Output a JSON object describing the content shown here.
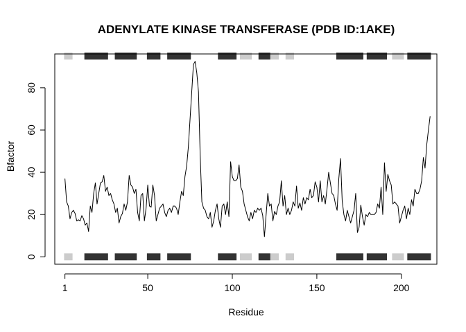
{
  "chart_data": {
    "type": "line",
    "title": "ADENYLATE KINASE TRANSFERASE (PDB ID:1AKE)",
    "xlabel": "Residue",
    "ylabel": "Bfactor",
    "xlim": [
      -5,
      221
    ],
    "ylim": [
      -3.5,
      96
    ],
    "x_ticks": [
      1,
      50,
      100,
      150,
      200
    ],
    "y_ticks": [
      0,
      20,
      40,
      60,
      80
    ],
    "grid": false,
    "line_color": "#000000",
    "x_start": 1,
    "values": [
      37.0,
      26.0,
      24.0,
      18.0,
      21.0,
      22.0,
      20.5,
      17.0,
      17.5,
      17.0,
      19.5,
      18.0,
      15.0,
      16.0,
      12.0,
      24.0,
      21.0,
      30.0,
      35.0,
      25.0,
      30.0,
      35.0,
      35.5,
      38.5,
      31.0,
      33.0,
      29.0,
      30.0,
      27.0,
      25.0,
      21.0,
      23.0,
      16.0,
      19.0,
      20.5,
      25.0,
      22.0,
      26.0,
      38.5,
      34.0,
      33.0,
      30.0,
      32.0,
      21.0,
      17.0,
      29.0,
      30.0,
      17.0,
      23.0,
      34.0,
      24.0,
      23.5,
      34.0,
      29.0,
      17.0,
      20.0,
      23.0,
      24.0,
      25.0,
      21.0,
      19.0,
      22.0,
      23.0,
      21.0,
      24.0,
      24.0,
      23.0,
      20.0,
      26.0,
      31.0,
      29.0,
      38.0,
      43.0,
      52.0,
      65.0,
      78.0,
      91.0,
      92.5,
      87.0,
      78.0,
      48.0,
      26.0,
      23.0,
      22.0,
      19.0,
      18.0,
      21.0,
      14.0,
      17.0,
      22.0,
      25.0,
      18.0,
      14.0,
      24.0,
      25.0,
      20.0,
      26.0,
      19.0,
      45.0,
      38.0,
      36.0,
      36.0,
      37.0,
      43.5,
      33.0,
      31.0,
      25.0,
      22.0,
      19.0,
      17.0,
      21.0,
      18.0,
      22.0,
      21.0,
      23.0,
      22.0,
      23.0,
      19.5,
      9.5,
      20.0,
      30.0,
      24.0,
      25.0,
      17.0,
      21.5,
      20.0,
      24.0,
      26.0,
      36.0,
      24.0,
      29.0,
      20.0,
      23.0,
      20.0,
      22.0,
      26.0,
      24.0,
      33.5,
      23.0,
      25.5,
      22.0,
      28.0,
      25.0,
      28.0,
      27.0,
      32.0,
      28.0,
      29.0,
      35.5,
      33.0,
      26.0,
      36.0,
      26.0,
      29.0,
      25.0,
      32.0,
      40.0,
      35.0,
      30.0,
      29.0,
      25.0,
      22.0,
      37.0,
      46.5,
      26.5,
      20.0,
      17.0,
      22.0,
      19.0,
      16.0,
      19.0,
      22.0,
      30.0,
      11.5,
      14.0,
      24.5,
      19.0,
      15.0,
      20.0,
      19.0,
      21.0,
      20.0,
      20.0,
      20.0,
      21.0,
      25.0,
      23.0,
      33.0,
      20.0,
      44.5,
      31.0,
      39.0,
      36.0,
      34.0,
      25.0,
      26.0,
      25.0,
      24.0,
      16.0,
      19.0,
      22.0,
      24.0,
      18.0,
      23.0,
      20.0,
      27.0,
      24.0,
      32.0,
      30.0,
      30.0,
      32.0,
      36.0,
      47.0,
      42.0,
      53.0,
      60.0,
      66.5
    ],
    "sse_tracks": {
      "levels": [
        0,
        95
      ],
      "blocks": [
        {
          "start": 1,
          "end": 5,
          "color": "#cccccc"
        },
        {
          "start": 13,
          "end": 26,
          "color": "#333333"
        },
        {
          "start": 31,
          "end": 43,
          "color": "#333333"
        },
        {
          "start": 50,
          "end": 57,
          "color": "#333333"
        },
        {
          "start": 62,
          "end": 75,
          "color": "#333333"
        },
        {
          "start": 92,
          "end": 102,
          "color": "#333333"
        },
        {
          "start": 105,
          "end": 111,
          "color": "#cccccc"
        },
        {
          "start": 116,
          "end": 122,
          "color": "#333333"
        },
        {
          "start": 123,
          "end": 127,
          "color": "#cccccc"
        },
        {
          "start": 132,
          "end": 136,
          "color": "#cccccc"
        },
        {
          "start": 162,
          "end": 177,
          "color": "#333333"
        },
        {
          "start": 180,
          "end": 191,
          "color": "#333333"
        },
        {
          "start": 195,
          "end": 201,
          "color": "#cccccc"
        },
        {
          "start": 204,
          "end": 217,
          "color": "#333333"
        }
      ]
    }
  }
}
